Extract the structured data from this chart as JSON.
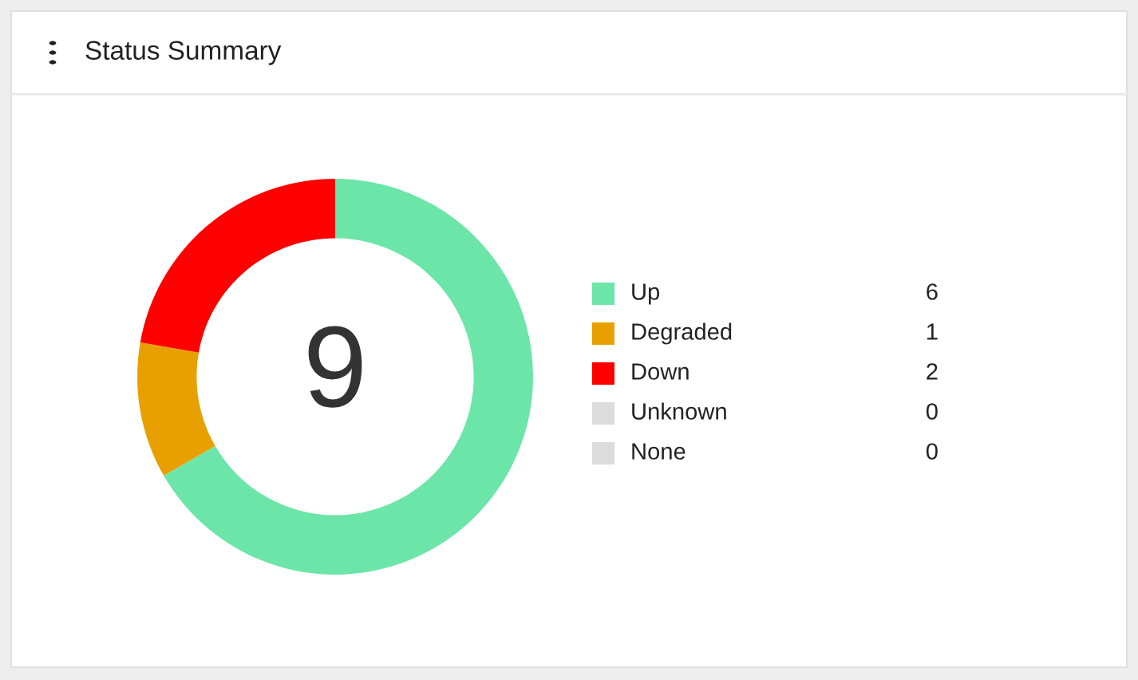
{
  "chart_data": {
    "type": "donut",
    "title": "Status Summary",
    "categories": [
      "Up",
      "Degraded",
      "Down",
      "Unknown",
      "None"
    ],
    "values": [
      6,
      1,
      2,
      0,
      0
    ],
    "colors": [
      "#6ce5a8",
      "#e8a000",
      "#ff0000",
      "#dcdcdc",
      "#dcdcdc"
    ],
    "annotations": [
      "9"
    ],
    "value_labels": [
      "6",
      "1",
      "2",
      "0",
      "0"
    ],
    "legend": "right"
  }
}
